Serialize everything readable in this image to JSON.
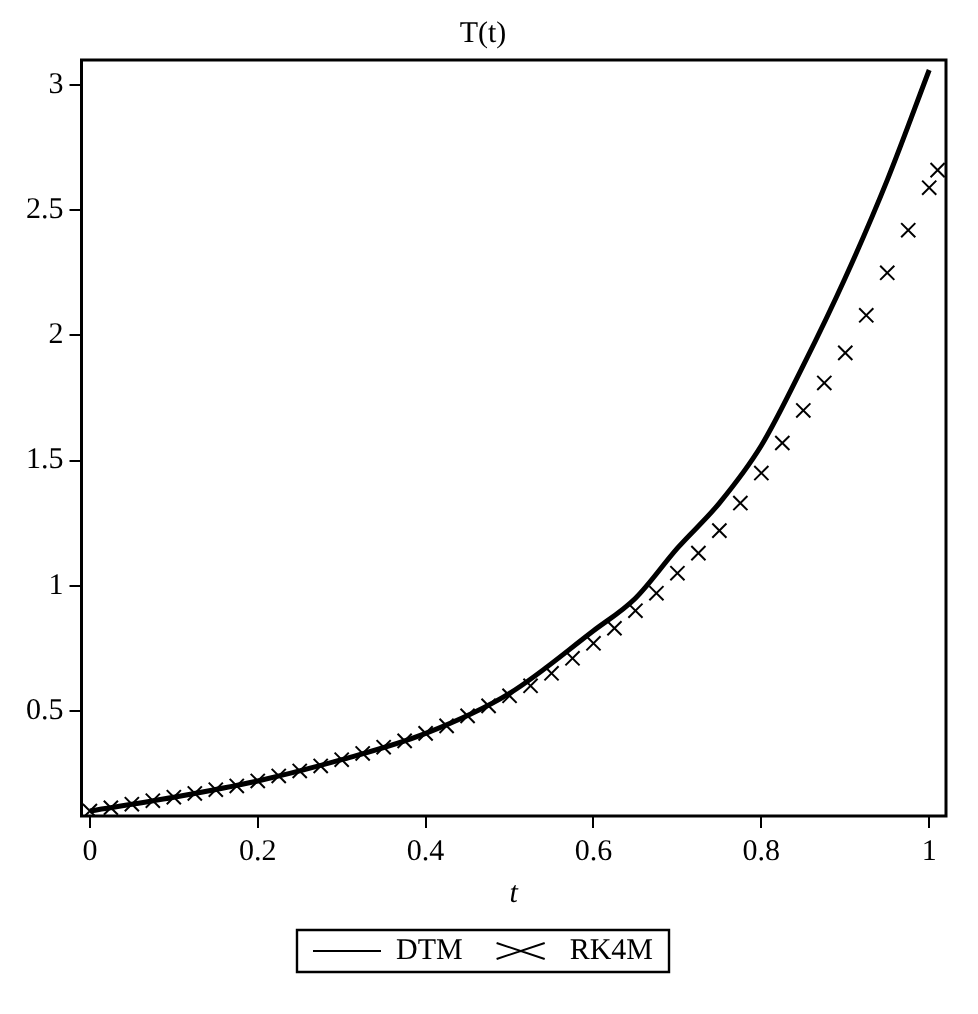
{
  "chart_data": {
    "type": "line",
    "title": "T(t)",
    "xlabel": "t",
    "xlim": [
      -0.01,
      1.02
    ],
    "ylim": [
      0.08,
      3.1
    ],
    "xticks": [
      0,
      0.2,
      0.4,
      0.6,
      0.8,
      1
    ],
    "yticks": [
      0.5,
      1,
      1.5,
      2,
      2.5,
      3
    ],
    "legend": "bottom",
    "series": [
      {
        "name": "DTM",
        "type": "line",
        "color": "#000000",
        "marker": "none",
        "line_style": "solid",
        "x": [
          0,
          0.1,
          0.2,
          0.3,
          0.4,
          0.5,
          0.6,
          0.65,
          0.7,
          0.75,
          0.8,
          0.85,
          0.9,
          0.95,
          1.0
        ],
        "values": [
          0.1,
          0.155,
          0.22,
          0.305,
          0.41,
          0.57,
          0.82,
          0.95,
          1.15,
          1.33,
          1.56,
          1.88,
          2.23,
          2.62,
          3.06
        ]
      },
      {
        "name": "RK4M",
        "type": "scatter",
        "color": "#000000",
        "marker": "cross",
        "x": [
          0,
          0.025,
          0.05,
          0.075,
          0.1,
          0.125,
          0.15,
          0.175,
          0.2,
          0.225,
          0.25,
          0.275,
          0.3,
          0.325,
          0.35,
          0.375,
          0.4,
          0.425,
          0.45,
          0.475,
          0.5,
          0.525,
          0.55,
          0.575,
          0.6,
          0.625,
          0.65,
          0.675,
          0.7,
          0.725,
          0.75,
          0.775,
          0.8,
          0.825,
          0.85,
          0.875,
          0.9,
          0.925,
          0.95,
          0.975,
          1.0,
          1.01
        ],
        "values": [
          0.1,
          0.113,
          0.127,
          0.141,
          0.155,
          0.17,
          0.185,
          0.2,
          0.22,
          0.24,
          0.26,
          0.28,
          0.305,
          0.33,
          0.355,
          0.38,
          0.41,
          0.44,
          0.48,
          0.52,
          0.56,
          0.6,
          0.65,
          0.71,
          0.77,
          0.83,
          0.9,
          0.97,
          1.05,
          1.13,
          1.22,
          1.33,
          1.45,
          1.57,
          1.7,
          1.81,
          1.93,
          2.08,
          2.25,
          2.42,
          2.59,
          2.66
        ]
      }
    ]
  }
}
